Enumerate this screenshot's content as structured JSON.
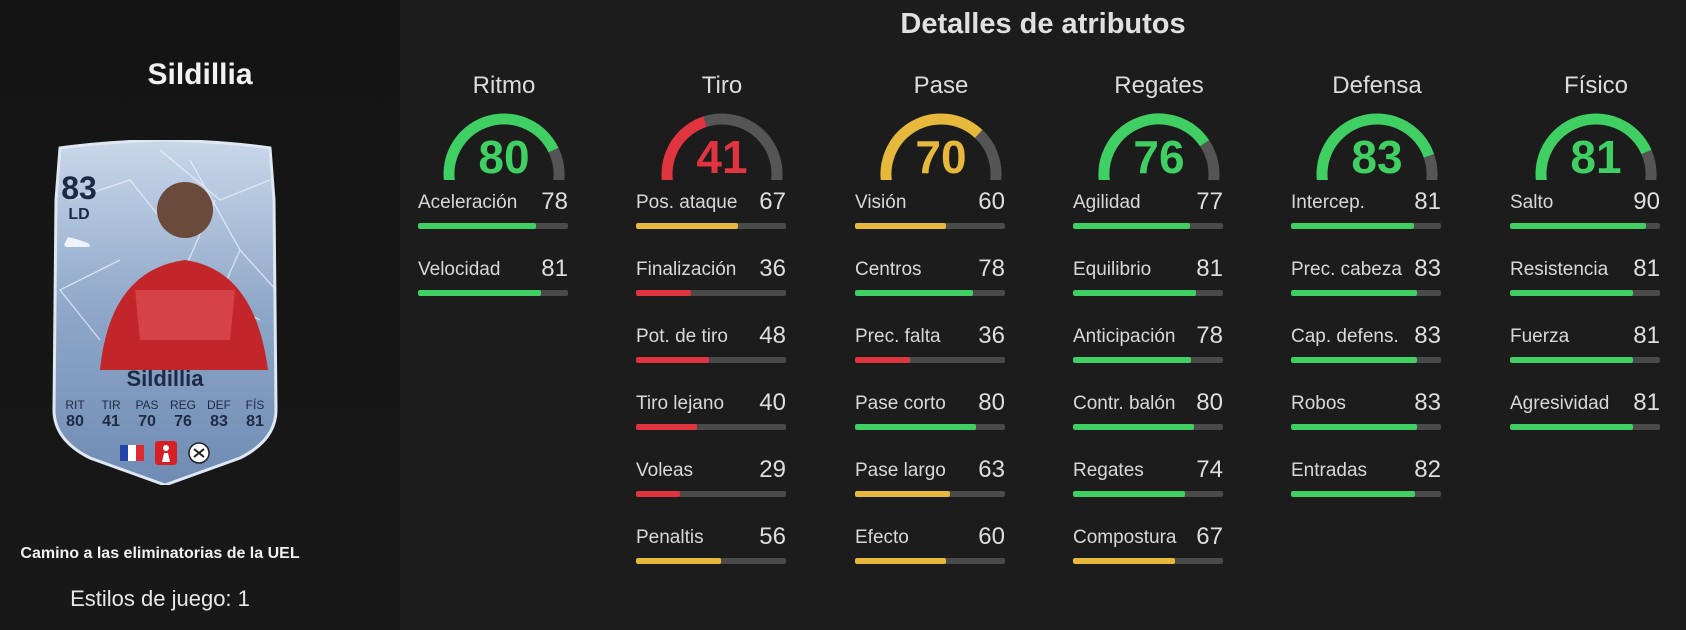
{
  "page_title": "Detalles de atributos",
  "player": {
    "name": "Sildillia",
    "card_name": "Sildillia",
    "rating": "83",
    "position": "LD",
    "promo": "Camino a las eliminatorias de la UEL",
    "playstyles": "Estilos de juego: 1",
    "card_stats": [
      {
        "label": "RIT",
        "value": "80"
      },
      {
        "label": "TIR",
        "value": "41"
      },
      {
        "label": "PAS",
        "value": "70"
      },
      {
        "label": "REG",
        "value": "76"
      },
      {
        "label": "DEF",
        "value": "83"
      },
      {
        "label": "FÍS",
        "value": "81"
      }
    ],
    "badge_icons": [
      "france-flag-icon",
      "bundesliga-icon",
      "freiburg-crest-icon"
    ]
  },
  "colors": {
    "green": "#3fcf63",
    "yellow": "#e6b83c",
    "red": "#e0343f",
    "track": "#4a4a4a"
  },
  "categories": [
    {
      "name": "Ritmo",
      "value": "80",
      "color": "#3fcf63",
      "stats": [
        {
          "name": "Aceleración",
          "value": "78",
          "color": "#3fcf63"
        },
        {
          "name": "Velocidad",
          "value": "81",
          "color": "#3fcf63"
        }
      ]
    },
    {
      "name": "Tiro",
      "value": "41",
      "color": "#e0343f",
      "stats": [
        {
          "name": "Pos. ataque",
          "value": "67",
          "color": "#e6b83c"
        },
        {
          "name": "Finalización",
          "value": "36",
          "color": "#e0343f"
        },
        {
          "name": "Pot. de tiro",
          "value": "48",
          "color": "#e0343f"
        },
        {
          "name": "Tiro lejano",
          "value": "40",
          "color": "#e0343f"
        },
        {
          "name": "Voleas",
          "value": "29",
          "color": "#e0343f"
        },
        {
          "name": "Penaltis",
          "value": "56",
          "color": "#e6b83c"
        }
      ]
    },
    {
      "name": "Pase",
      "value": "70",
      "color": "#e6b83c",
      "stats": [
        {
          "name": "Visión",
          "value": "60",
          "color": "#e6b83c"
        },
        {
          "name": "Centros",
          "value": "78",
          "color": "#3fcf63"
        },
        {
          "name": "Prec. falta",
          "value": "36",
          "color": "#e0343f"
        },
        {
          "name": "Pase corto",
          "value": "80",
          "color": "#3fcf63"
        },
        {
          "name": "Pase largo",
          "value": "63",
          "color": "#e6b83c"
        },
        {
          "name": "Efecto",
          "value": "60",
          "color": "#e6b83c"
        }
      ]
    },
    {
      "name": "Regates",
      "value": "76",
      "color": "#3fcf63",
      "stats": [
        {
          "name": "Agilidad",
          "value": "77",
          "color": "#3fcf63"
        },
        {
          "name": "Equilibrio",
          "value": "81",
          "color": "#3fcf63"
        },
        {
          "name": "Anticipación",
          "value": "78",
          "color": "#3fcf63"
        },
        {
          "name": "Contr. balón",
          "value": "80",
          "color": "#3fcf63"
        },
        {
          "name": "Regates",
          "value": "74",
          "color": "#3fcf63"
        },
        {
          "name": "Compostura",
          "value": "67",
          "color": "#e6b83c"
        }
      ]
    },
    {
      "name": "Defensa",
      "value": "83",
      "color": "#3fcf63",
      "stats": [
        {
          "name": "Intercep.",
          "value": "81",
          "color": "#3fcf63"
        },
        {
          "name": "Prec. cabeza",
          "value": "83",
          "color": "#3fcf63"
        },
        {
          "name": "Cap. defens.",
          "value": "83",
          "color": "#3fcf63"
        },
        {
          "name": "Robos",
          "value": "83",
          "color": "#3fcf63"
        },
        {
          "name": "Entradas",
          "value": "82",
          "color": "#3fcf63"
        }
      ]
    },
    {
      "name": "Físico",
      "value": "81",
      "color": "#3fcf63",
      "stats": [
        {
          "name": "Salto",
          "value": "90",
          "color": "#3fcf63"
        },
        {
          "name": "Resistencia",
          "value": "81",
          "color": "#3fcf63"
        },
        {
          "name": "Fuerza",
          "value": "81",
          "color": "#3fcf63"
        },
        {
          "name": "Agresividad",
          "value": "81",
          "color": "#3fcf63"
        }
      ]
    }
  ]
}
